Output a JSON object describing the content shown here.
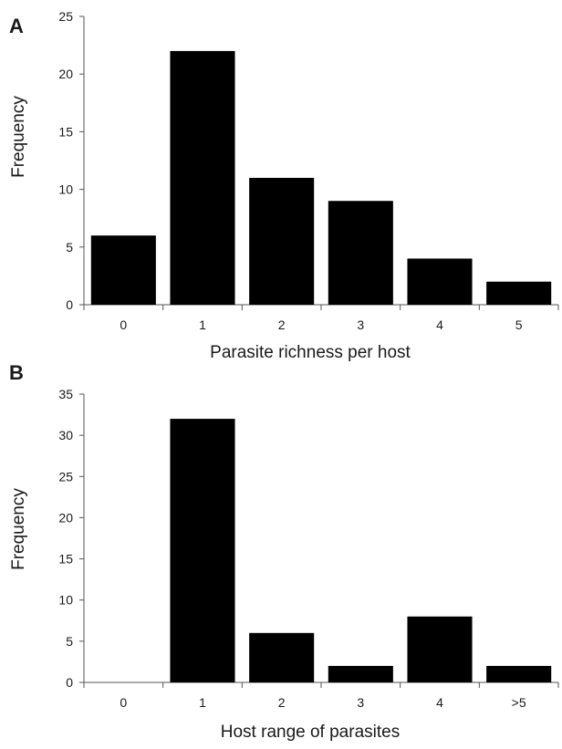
{
  "chart_data": [
    {
      "type": "bar",
      "panel_label": "A",
      "categories": [
        "0",
        "1",
        "2",
        "3",
        "4",
        "5"
      ],
      "values": [
        6,
        22,
        11,
        9,
        4,
        2
      ],
      "xlabel": "Parasite richness per host",
      "ylabel": "Frequency",
      "ylim": [
        0,
        25
      ],
      "yticks": [
        "0",
        "5",
        "10",
        "15",
        "20",
        "25"
      ],
      "grid": false,
      "bar_color": "#000000"
    },
    {
      "type": "bar",
      "panel_label": "B",
      "categories": [
        "0",
        "1",
        "2",
        "3",
        "4",
        ">5"
      ],
      "values": [
        0,
        32,
        6,
        2,
        8,
        2
      ],
      "xlabel": "Host range of parasites",
      "ylabel": "Frequency",
      "ylim": [
        0,
        35
      ],
      "yticks": [
        "0",
        "5",
        "10",
        "15",
        "20",
        "25",
        "30",
        "35"
      ],
      "grid": false,
      "bar_color": "#000000"
    }
  ]
}
